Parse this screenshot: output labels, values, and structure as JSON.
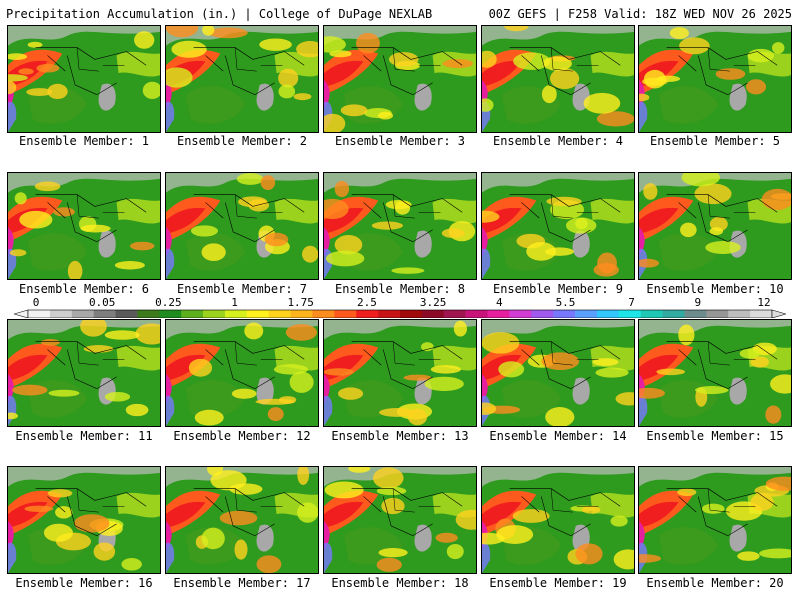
{
  "header": {
    "left": "Precipitation Accumulation (in.) | College of DuPage NEXLAB",
    "right": "00Z GEFS | F258 Valid: 18Z WED NOV 26 2025"
  },
  "members": [
    {
      "label": "Ensemble Member: 1"
    },
    {
      "label": "Ensemble Member: 2"
    },
    {
      "label": "Ensemble Member: 3"
    },
    {
      "label": "Ensemble Member: 4"
    },
    {
      "label": "Ensemble Member: 5"
    },
    {
      "label": "Ensemble Member: 6"
    },
    {
      "label": "Ensemble Member: 7"
    },
    {
      "label": "Ensemble Member: 8"
    },
    {
      "label": "Ensemble Member: 9"
    },
    {
      "label": "Ensemble Member: 10"
    },
    {
      "label": "Ensemble Member: 11"
    },
    {
      "label": "Ensemble Member: 12"
    },
    {
      "label": "Ensemble Member: 13"
    },
    {
      "label": "Ensemble Member: 14"
    },
    {
      "label": "Ensemble Member: 15"
    },
    {
      "label": "Ensemble Member: 16"
    },
    {
      "label": "Ensemble Member: 17"
    },
    {
      "label": "Ensemble Member: 18"
    },
    {
      "label": "Ensemble Member: 19"
    },
    {
      "label": "Ensemble Member: 20"
    }
  ],
  "colorbar": {
    "tick_labels": [
      "0",
      "0.05",
      "0.25",
      "1",
      "1.75",
      "2.5",
      "3.25",
      "4",
      "5.5",
      "7",
      "9",
      "12"
    ],
    "colors": [
      "#f2f2f2",
      "#cfcfcf",
      "#a8a8a8",
      "#7e7e7e",
      "#5a5a5a",
      "#3c7a1c",
      "#1e8c1e",
      "#5cb01e",
      "#9ad21e",
      "#d6f01e",
      "#fff01e",
      "#ffd21e",
      "#ffb41e",
      "#ff8c1e",
      "#ff5a1e",
      "#f01e1e",
      "#c81414",
      "#a00a0a",
      "#8c0a28",
      "#a01450",
      "#c8147a",
      "#e61ea0",
      "#d23cd2",
      "#a05af0",
      "#7878ff",
      "#5aa0ff",
      "#32c8ff",
      "#1ee6e6",
      "#1ec8b4",
      "#32aaa0",
      "#6e8c8c",
      "#969696",
      "#bebebe",
      "#dcdcdc"
    ]
  }
}
